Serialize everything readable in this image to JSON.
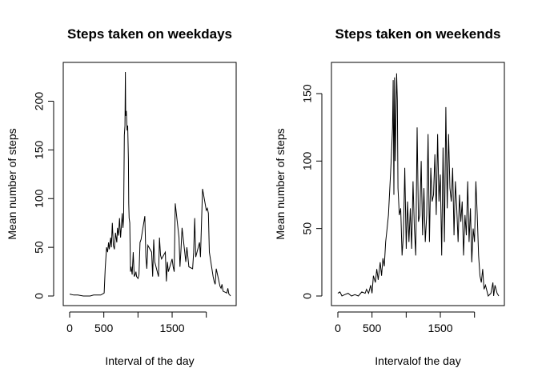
{
  "colors": {
    "line": "#000000",
    "background": "#ffffff"
  },
  "chart_data": [
    {
      "type": "line",
      "title": "Steps taken on weekdays",
      "xlabel": "Interval of the day",
      "ylabel": "Mean number of steps",
      "xlim": [
        0,
        2355
      ],
      "ylim": [
        0,
        230
      ],
      "xticks": [
        0,
        500,
        1000,
        1500,
        2000
      ],
      "xtick_labels": [
        "0",
        "500",
        "",
        "1500",
        ""
      ],
      "yticks": [
        0,
        50,
        100,
        150,
        200
      ],
      "ytick_labels": [
        "0",
        "50",
        "100",
        "150",
        "200"
      ],
      "series": [
        {
          "x": [
            0,
            60,
            120,
            200,
            300,
            350,
            400,
            455,
            505,
            520,
            540,
            555,
            570,
            580,
            600,
            610,
            625,
            640,
            655,
            670,
            690,
            700,
            715,
            730,
            745,
            760,
            770,
            780,
            790,
            800,
            810,
            815,
            820,
            830,
            840,
            850,
            860,
            865,
            870,
            880,
            890,
            900,
            915,
            930,
            945,
            960,
            970,
            980,
            1000,
            1015,
            1030,
            1045,
            1100,
            1115,
            1130,
            1145,
            1200,
            1215,
            1230,
            1245,
            1300,
            1315,
            1330,
            1345,
            1400,
            1415,
            1430,
            1445,
            1500,
            1515,
            1530,
            1545,
            1600,
            1615,
            1630,
            1645,
            1700,
            1715,
            1730,
            1745,
            1800,
            1815,
            1830,
            1845,
            1900,
            1915,
            1930,
            1945,
            2000,
            2015,
            2030,
            2045,
            2100,
            2115,
            2130,
            2145,
            2200,
            2215,
            2230,
            2245,
            2300,
            2315,
            2330,
            2345,
            2355
          ],
          "y": [
            2,
            1,
            1,
            0,
            0,
            1,
            1,
            1,
            3,
            28,
            50,
            45,
            55,
            48,
            60,
            50,
            75,
            52,
            48,
            65,
            55,
            70,
            62,
            80,
            60,
            75,
            85,
            70,
            80,
            165,
            175,
            230,
            185,
            190,
            170,
            175,
            140,
            95,
            80,
            75,
            25,
            30,
            22,
            45,
            20,
            22,
            25,
            20,
            18,
            22,
            55,
            58,
            82,
            40,
            28,
            52,
            45,
            20,
            58,
            35,
            20,
            60,
            42,
            38,
            45,
            15,
            35,
            25,
            38,
            30,
            25,
            95,
            60,
            30,
            48,
            70,
            35,
            50,
            40,
            30,
            28,
            45,
            80,
            40,
            55,
            40,
            75,
            110,
            88,
            90,
            85,
            45,
            20,
            15,
            12,
            28,
            10,
            8,
            12,
            5,
            3,
            8,
            2,
            1,
            0
          ]
        }
      ]
    },
    {
      "type": "line",
      "title": "Steps taken on weekends",
      "xlabel": "Intervalof the day",
      "ylabel": "Mean number of steps",
      "xlim": [
        0,
        2355
      ],
      "ylim": [
        0,
        166
      ],
      "xticks": [
        0,
        500,
        1000,
        1500,
        2000
      ],
      "xtick_labels": [
        "0",
        "500",
        "",
        "1500",
        ""
      ],
      "yticks": [
        0,
        50,
        100,
        150
      ],
      "ytick_labels": [
        "0",
        "50",
        "100",
        "150"
      ],
      "series": [
        {
          "x": [
            0,
            30,
            60,
            100,
            150,
            200,
            250,
            300,
            350,
            400,
            420,
            450,
            480,
            500,
            520,
            550,
            570,
            590,
            620,
            640,
            660,
            680,
            700,
            720,
            740,
            760,
            780,
            800,
            810,
            820,
            830,
            840,
            850,
            860,
            870,
            880,
            900,
            920,
            940,
            960,
            980,
            1000,
            1020,
            1040,
            1060,
            1080,
            1100,
            1120,
            1140,
            1160,
            1180,
            1200,
            1220,
            1240,
            1260,
            1280,
            1300,
            1320,
            1340,
            1360,
            1380,
            1400,
            1420,
            1440,
            1460,
            1480,
            1500,
            1520,
            1540,
            1560,
            1580,
            1600,
            1620,
            1640,
            1660,
            1680,
            1700,
            1720,
            1740,
            1760,
            1780,
            1800,
            1820,
            1840,
            1860,
            1880,
            1900,
            1920,
            1940,
            1960,
            1980,
            2000,
            2020,
            2040,
            2060,
            2080,
            2100,
            2120,
            2140,
            2160,
            2200,
            2240,
            2270,
            2280,
            2300,
            2330,
            2355
          ],
          "y": [
            2,
            3,
            0,
            1,
            2,
            0,
            1,
            0,
            3,
            2,
            5,
            2,
            8,
            2,
            15,
            10,
            20,
            12,
            25,
            15,
            28,
            22,
            40,
            50,
            60,
            80,
            100,
            125,
            160,
            75,
            162,
            100,
            130,
            165,
            145,
            80,
            60,
            65,
            30,
            45,
            95,
            35,
            70,
            40,
            65,
            35,
            85,
            50,
            30,
            125,
            55,
            60,
            100,
            45,
            80,
            40,
            60,
            120,
            40,
            95,
            70,
            75,
            105,
            60,
            120,
            70,
            90,
            30,
            110,
            40,
            140,
            65,
            120,
            80,
            70,
            95,
            45,
            85,
            65,
            40,
            75,
            55,
            70,
            30,
            60,
            45,
            85,
            40,
            65,
            25,
            50,
            40,
            85,
            60,
            30,
            15,
            10,
            20,
            5,
            8,
            0,
            2,
            10,
            0,
            8,
            2,
            0
          ]
        }
      ]
    }
  ]
}
